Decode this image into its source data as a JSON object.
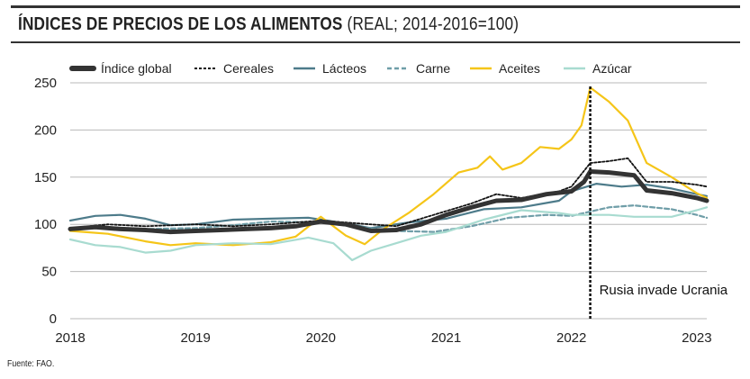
{
  "chart_data": {
    "type": "line",
    "title": "ÍNDICES DE PRECIOS DE LOS ALIMENTOS",
    "subtitle": "(REAL; 2014-2016=100)",
    "xlabel": "",
    "ylabel": "",
    "x_ticks": [
      "2018",
      "2019",
      "2020",
      "2021",
      "2022",
      "2023"
    ],
    "y_ticks": [
      0,
      50,
      100,
      150,
      200,
      250
    ],
    "ylim": [
      0,
      250
    ],
    "xlim": [
      2018.0,
      2023.08
    ],
    "grid": true,
    "legend_position": "top",
    "annotation": {
      "x": 2022.15,
      "text": "Rusia invade Ucrania"
    },
    "series": [
      {
        "name": "Índice global",
        "color": "#333333",
        "style": "thick",
        "x": [
          2018.0,
          2018.2,
          2018.4,
          2018.6,
          2018.8,
          2019.0,
          2019.2,
          2019.4,
          2019.6,
          2019.8,
          2020.0,
          2020.2,
          2020.4,
          2020.6,
          2020.8,
          2021.0,
          2021.2,
          2021.4,
          2021.6,
          2021.8,
          2022.0,
          2022.1,
          2022.15,
          2022.3,
          2022.5,
          2022.6,
          2022.8,
          2023.0,
          2023.08
        ],
        "y": [
          95,
          97,
          95,
          94,
          92,
          93,
          94,
          95,
          96,
          98,
          103,
          100,
          93,
          94,
          100,
          110,
          118,
          125,
          126,
          132,
          135,
          145,
          156,
          155,
          152,
          136,
          133,
          128,
          125
        ]
      },
      {
        "name": "Cereales",
        "color": "#111111",
        "style": "dotted",
        "x": [
          2018.0,
          2018.3,
          2018.6,
          2019.0,
          2019.3,
          2019.6,
          2020.0,
          2020.3,
          2020.6,
          2020.9,
          2021.2,
          2021.4,
          2021.6,
          2021.9,
          2022.0,
          2022.15,
          2022.3,
          2022.45,
          2022.6,
          2022.8,
          2023.0,
          2023.08
        ],
        "y": [
          96,
          100,
          98,
          100,
          98,
          100,
          104,
          101,
          98,
          110,
          122,
          132,
          128,
          135,
          140,
          165,
          167,
          170,
          145,
          145,
          142,
          140
        ]
      },
      {
        "name": "Lácteos",
        "color": "#4d7b8a",
        "style": "solid",
        "x": [
          2018.0,
          2018.2,
          2018.4,
          2018.6,
          2018.8,
          2019.0,
          2019.3,
          2019.6,
          2019.9,
          2020.2,
          2020.4,
          2020.7,
          2021.0,
          2021.3,
          2021.6,
          2021.9,
          2022.0,
          2022.2,
          2022.4,
          2022.6,
          2022.8,
          2023.0,
          2023.08
        ],
        "y": [
          104,
          109,
          110,
          106,
          99,
          100,
          105,
          106,
          107,
          101,
          96,
          102,
          106,
          116,
          118,
          125,
          135,
          143,
          140,
          142,
          138,
          132,
          130
        ]
      },
      {
        "name": "Carne",
        "color": "#6f9ea8",
        "style": "dashed",
        "x": [
          2018.0,
          2018.3,
          2018.6,
          2019.0,
          2019.3,
          2019.6,
          2020.0,
          2020.3,
          2020.6,
          2020.9,
          2021.2,
          2021.5,
          2021.8,
          2022.0,
          2022.3,
          2022.5,
          2022.8,
          2023.0,
          2023.08
        ],
        "y": [
          95,
          97,
          95,
          96,
          99,
          103,
          102,
          97,
          93,
          92,
          98,
          107,
          110,
          109,
          118,
          120,
          116,
          110,
          107
        ]
      },
      {
        "name": "Aceites",
        "color": "#f5c518",
        "style": "solid",
        "x": [
          2018.0,
          2018.3,
          2018.6,
          2018.8,
          2019.0,
          2019.3,
          2019.6,
          2019.8,
          2020.0,
          2020.2,
          2020.35,
          2020.5,
          2020.7,
          2020.9,
          2021.1,
          2021.25,
          2021.35,
          2021.45,
          2021.6,
          2021.75,
          2021.9,
          2022.0,
          2022.08,
          2022.15,
          2022.3,
          2022.45,
          2022.6,
          2022.8,
          2023.0,
          2023.08
        ],
        "y": [
          93,
          90,
          82,
          78,
          80,
          78,
          81,
          87,
          108,
          88,
          79,
          95,
          112,
          132,
          155,
          160,
          172,
          158,
          165,
          182,
          180,
          190,
          205,
          245,
          230,
          210,
          165,
          150,
          133,
          128
        ]
      },
      {
        "name": "Azúcar",
        "color": "#a8dbd0",
        "style": "solid",
        "x": [
          2018.0,
          2018.2,
          2018.4,
          2018.6,
          2018.8,
          2019.0,
          2019.3,
          2019.6,
          2019.9,
          2020.1,
          2020.25,
          2020.4,
          2020.6,
          2020.8,
          2021.0,
          2021.3,
          2021.6,
          2021.9,
          2022.0,
          2022.3,
          2022.5,
          2022.8,
          2023.0,
          2023.08
        ],
        "y": [
          84,
          78,
          76,
          70,
          72,
          78,
          80,
          79,
          86,
          80,
          62,
          72,
          80,
          88,
          92,
          105,
          115,
          112,
          110,
          110,
          108,
          108,
          115,
          118
        ]
      }
    ]
  },
  "source_text": "Fuente: FAO."
}
